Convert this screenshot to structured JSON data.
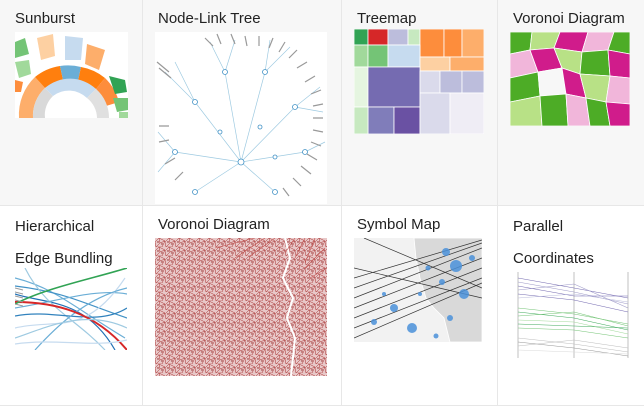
{
  "gallery": {
    "items": [
      {
        "title": "Sunburst"
      },
      {
        "title": "Node-Link Tree"
      },
      {
        "title": "Treemap"
      },
      {
        "title": "Voronoi Diagram"
      },
      {
        "title": "Hierarchical Edge Bundling"
      },
      {
        "title": "Voronoi Diagram"
      },
      {
        "title": "Symbol Map"
      },
      {
        "title": "Parallel Coordinates"
      }
    ]
  },
  "colors": {
    "orange": "#ff7f0e",
    "blue": "#6baed6",
    "green": "#31a354",
    "purple": "#756bb1",
    "magenta": "#e7298a",
    "lightgreen": "#a1d99b",
    "brown": "#8b1a1a"
  }
}
